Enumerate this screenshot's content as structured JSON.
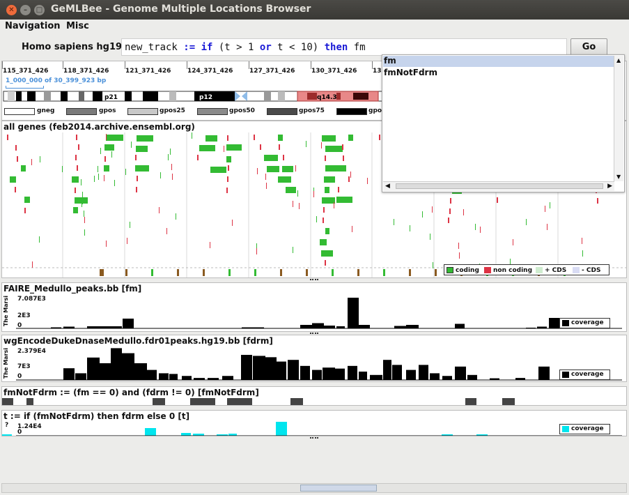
{
  "window": {
    "title": "GeMLBee - Genome Multiple Locations Browser"
  },
  "menu": {
    "navigation": "Navigation",
    "misc": "Misc"
  },
  "toolbar": {
    "organism": "Homo sapiens hg19",
    "go_label": "Go"
  },
  "command": {
    "p1": "new_track ",
    "k1": ":=",
    "p2": " ",
    "k2": "if",
    "p3": " (t > 1 ",
    "k3": "or",
    "p4": " t < 10) ",
    "k4": "then",
    "p5": " fm"
  },
  "ruler": {
    "ticks": [
      "115_371_426",
      "118_371_426",
      "121_371_426",
      "124_371_426",
      "127_371_426",
      "130_371_426",
      "13"
    ],
    "scale_text": "1_000_000 of 30_399_923 bp",
    "bands": [
      "p21",
      "p12",
      "q14.3"
    ],
    "legend": [
      "gneg",
      "gpos",
      "gpos25",
      "gpos50",
      "gpos75",
      "gpos"
    ]
  },
  "genes": {
    "title": "all genes (feb2014.archive.ensembl.org)",
    "legend": {
      "coding": "coding",
      "noncoding": "non coding",
      "plus_cds": "+ CDS",
      "minus_cds": "- CDS"
    }
  },
  "tracks": [
    {
      "title": "FAIRE_Medullo_peaks.bb [fm]",
      "ymax": "7.087E3",
      "ymid": "2E3",
      "ymin": "0",
      "vlabel": "The Marsi",
      "legend": "coverage"
    },
    {
      "title": "wgEncodeDukeDnaseMedullo.fdr01peaks.hg19.bb [fdrm]",
      "ymax": "2.379E4",
      "ymid": "7E3",
      "ymin": "0",
      "vlabel": "The Marsi",
      "legend": "coverage"
    },
    {
      "title": "fmNotFdrm := (fm == 0) and (fdrm != 0) [fmNotFdrm]"
    },
    {
      "title": "t := if (fmNotFdrm) then fdrm else 0 [t]",
      "ymax": "1.24E4",
      "ymin": "0",
      "vlabel": "?",
      "legend": "coverage"
    }
  ],
  "autocomplete": {
    "items": [
      "fm",
      "fmNotFdrm"
    ]
  },
  "colors": {
    "coding": "#33bb33",
    "noncoding": "#dd3344",
    "plus_cds": "#cfeccf",
    "minus_cds": "#d9dcf4",
    "t_track": "#00e5ee",
    "band_highlight": "#e88888"
  }
}
